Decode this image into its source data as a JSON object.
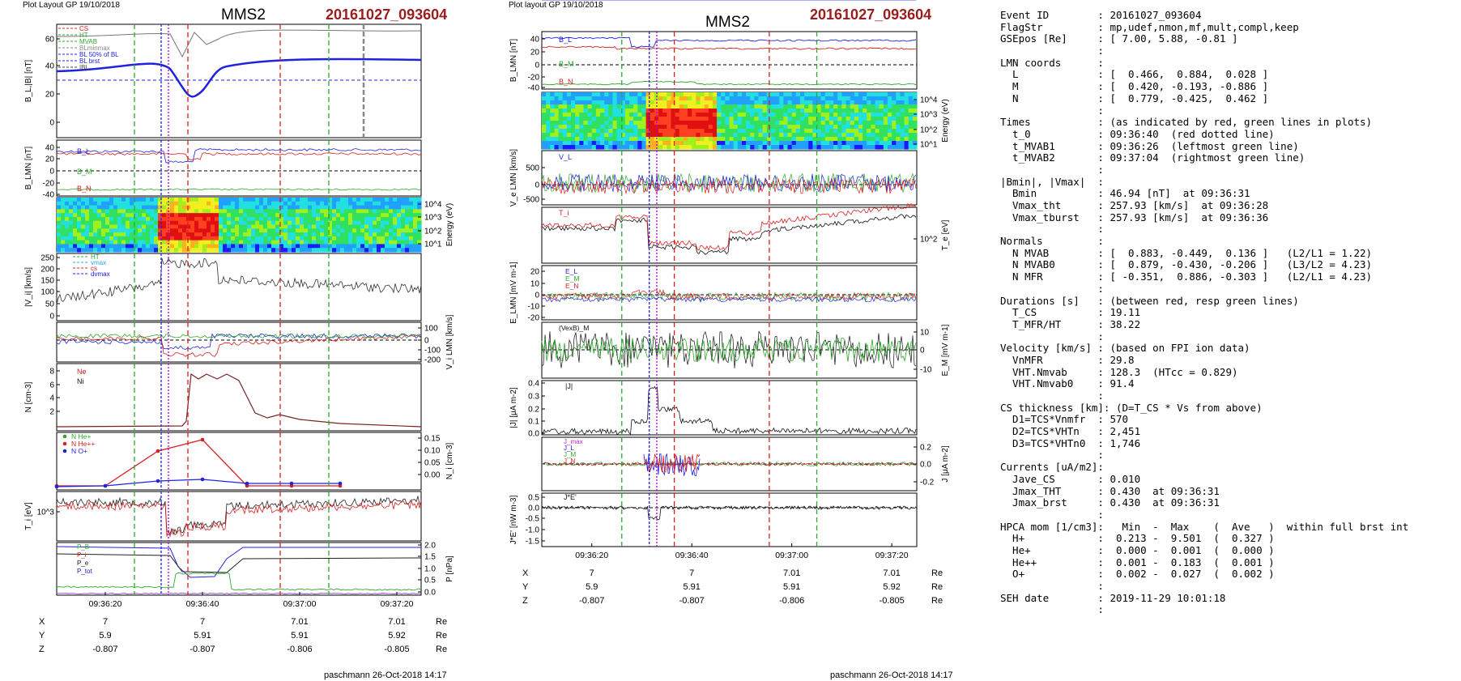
{
  "left_plot": {
    "label": "Plot Layout GP 19/10/2018",
    "spacecraft": "MMS2",
    "event": "20161027_093604",
    "time_ticks": [
      "09:36:20",
      "09:36:40",
      "09:37:00",
      "09:37:20"
    ],
    "coord_rows": [
      {
        "name": "X",
        "vals": [
          "7",
          "7",
          "7.01",
          "7.01"
        ],
        "unit": "Re"
      },
      {
        "name": "Y",
        "vals": [
          "5.9",
          "5.91",
          "5.91",
          "5.92"
        ],
        "unit": "Re"
      },
      {
        "name": "Z",
        "vals": [
          "-0.807",
          "-0.807",
          "-0.806",
          "-0.805"
        ],
        "unit": "Re"
      }
    ],
    "footer": "paschmann 26-Oct-2018 14:17",
    "panels": [
      {
        "id": "bl",
        "ylabel": "B_L,|B| [nT]",
        "yticks": [
          "60",
          "40",
          "20",
          "0"
        ],
        "ylim": [
          -2,
          68
        ],
        "side": "left",
        "legend": [
          "CS",
          "HT",
          "MVAB",
          "BLminmax",
          "BL 50% of BL",
          "BL brst",
          "|B|"
        ],
        "legend_colors": [
          "#d62020",
          "#2da82d",
          "#2da82d",
          "#888888",
          "#2222dd",
          "#2222dd",
          "#444444"
        ]
      },
      {
        "id": "blmn",
        "ylabel": "B_LMN [nT]",
        "yticks": [
          "40",
          "20",
          "0",
          "-20",
          "-40"
        ],
        "ylim": [
          -45,
          48
        ],
        "side": "left",
        "labels": [
          "B_L",
          "B_M",
          "B_N"
        ]
      },
      {
        "id": "spec",
        "ylabel": "Energy (eV)",
        "yticks": [
          "10^4",
          "10^3",
          "10^2",
          "10^1"
        ],
        "side": "right"
      },
      {
        "id": "vi",
        "ylabel": "|V_i| [km/s]",
        "yticks": [
          "250",
          "200",
          "150",
          "100",
          "50",
          "0"
        ],
        "ylim": [
          0,
          260
        ],
        "side": "left",
        "legend": [
          "HT",
          "vmax",
          "cs",
          "dvmax"
        ],
        "legend_colors": [
          "#2da82d",
          "#22aaee",
          "#d62020",
          "#2222dd"
        ]
      },
      {
        "id": "vilmn",
        "ylabel": "V_i LMN [km/s]",
        "yticks": [
          "100",
          "0",
          "-100",
          "-200"
        ],
        "ylim": [
          -240,
          130
        ],
        "side": "right",
        "labels": [
          "V_L",
          "V_M",
          "V_N"
        ]
      },
      {
        "id": "n",
        "ylabel": "N [cm^-3]",
        "yticks": [
          "8",
          "6",
          "4",
          "2"
        ],
        "ylim": [
          0,
          9.2
        ],
        "side": "left",
        "labels": [
          "Ne",
          "Ni"
        ]
      },
      {
        "id": "nhe",
        "ylabel": "N_i [cm^-3]",
        "yticks": [
          "0.15",
          "0.10",
          "0.05",
          "0.00"
        ],
        "ylim": [
          -0.01,
          0.17
        ],
        "side": "right",
        "legend": [
          "N  He+",
          "N  He++",
          "N  O+"
        ],
        "legend_colors": [
          "#2da82d",
          "#d62020",
          "#2222dd"
        ]
      },
      {
        "id": "ti",
        "ylabel": "T_i [eV]",
        "yticks": [
          "10^3"
        ],
        "side": "left",
        "labels": [
          "T_i",
          "T_||"
        ]
      },
      {
        "id": "p",
        "ylabel": "P [nPa]",
        "yticks": [
          "2.0",
          "1.5",
          "1.0",
          "0.5",
          "0.0"
        ],
        "ylim": [
          0,
          2.1
        ],
        "side": "right",
        "labels": [
          "P_B",
          "P_i",
          "P_e",
          "P_tot"
        ]
      }
    ]
  },
  "right_plot": {
    "label": "Plot layout GP 19/10/2018",
    "spacecraft": "MMS2",
    "event": "20161027_093604",
    "time_ticks": [
      "09:36:20",
      "09:36:40",
      "09:37:00",
      "09:37:20"
    ],
    "coord_rows": [
      {
        "name": "X",
        "vals": [
          "7",
          "7",
          "7.01",
          "7.01"
        ],
        "unit": "Re"
      },
      {
        "name": "Y",
        "vals": [
          "5.9",
          "5.91",
          "5.91",
          "5.92"
        ],
        "unit": "Re"
      },
      {
        "name": "Z",
        "vals": [
          "-0.807",
          "-0.807",
          "-0.806",
          "-0.805"
        ],
        "unit": "Re"
      }
    ],
    "footer": "paschmann 26-Oct-2018 14:17",
    "panels": [
      {
        "id": "blmn",
        "ylabel": "B_LMN [nT]",
        "yticks": [
          "40",
          "20",
          "0",
          "-20",
          "-40"
        ],
        "ylim": [
          -45,
          48
        ],
        "side": "left",
        "labels": [
          "B_L",
          "B_M",
          "B_N"
        ]
      },
      {
        "id": "spec",
        "ylabel": "Energy (eV)",
        "yticks": [
          "10^4",
          "10^3",
          "10^2",
          "10^1"
        ],
        "side": "right"
      },
      {
        "id": "ve",
        "ylabel": "V_e LMN [km/s]",
        "yticks": [
          "500",
          "0",
          "-500"
        ],
        "ylim": [
          -700,
          800
        ],
        "side": "left",
        "labels": [
          "V_L"
        ]
      },
      {
        "id": "te",
        "ylabel": "T_e [eV]",
        "yticks": [
          "10^2"
        ],
        "side": "right",
        "labels": [
          "T_i"
        ]
      },
      {
        "id": "e",
        "ylabel": "E_LMN [mV m^-1]",
        "yticks": [
          "20",
          "10",
          "0",
          "-10",
          "-20"
        ],
        "ylim": [
          -28,
          28
        ],
        "side": "left",
        "labels": [
          "E_L",
          "E_M",
          "E_N"
        ]
      },
      {
        "id": "em",
        "ylabel": "E_M [mV m^-1]",
        "yticks": [
          "10",
          "0",
          "-10"
        ],
        "ylim": [
          -14,
          14
        ],
        "side": "right",
        "labels": [
          "(VexB)_M"
        ]
      },
      {
        "id": "j",
        "ylabel": "|J| [μA m^-2]",
        "yticks": [
          "0.4",
          "0.3",
          "0.2",
          "0.1",
          "0.0"
        ],
        "ylim": [
          0,
          0.42
        ],
        "side": "left",
        "labels": [
          "|J|"
        ]
      },
      {
        "id": "jlmn",
        "ylabel": "J [μA m^-2]",
        "yticks": [
          "0.2",
          "0.0",
          "-0.2"
        ],
        "ylim": [
          -0.3,
          0.3
        ],
        "side": "right",
        "labels": [
          "J_max",
          "J_L",
          "J_M",
          "J_N"
        ]
      },
      {
        "id": "je",
        "ylabel": "J*E' [nW m^-3]",
        "yticks": [
          "0.5",
          "0.0",
          "-0.5",
          "-1.0",
          "-1.5"
        ],
        "ylim": [
          -1.6,
          0.6
        ],
        "side": "left",
        "labels": [
          "J*E'"
        ]
      }
    ]
  },
  "summary_lines": [
    "Event ID        : 20161027_093604",
    "FlagStr         : mp,udef,nmon,mf,mult,compl,keep",
    "GSEpos [Re]     : [ 7.00, 5.88, -0.81 ]",
    "                :",
    "LMN coords      :",
    "  L             : [  0.466,  0.884,  0.028 ]",
    "  M             : [  0.420, -0.193, -0.886 ]",
    "  N             : [  0.779, -0.425,  0.462 ]",
    "                :",
    "Times           : (as indicated by red, green lines in plots)",
    "  t_0           : 09:36:40  (red dotted line)",
    "  t_MVAB1       : 09:36:26  (leftmost green line)",
    "  t_MVAB2       : 09:37:04  (rightmost green line)",
    "                :",
    "|Bmin|, |Vmax|  :",
    "  Bmin          : 46.94 [nT]  at 09:36:31",
    "  Vmax_tht      : 257.93 [km/s]  at 09:36:28",
    "  Vmax_tburst   : 257.93 [km/s]  at 09:36:36",
    "                :",
    "Normals         :",
    "  N MVAB        : [  0.883, -0.449,  0.136 ]   (L2/L1 = 1.22)",
    "  N MVAB0       : [  0.879, -0.430, -0.206 ]   (L3/L2 = 4.23)",
    "  N MFR         : [ -0.351,  0.886, -0.303 ]   (L2/L1 = 4.23)",
    "                :",
    "Durations [s]   : (between red, resp green lines)",
    "  T_CS          : 19.11",
    "  T_MFR/HT      : 38.22",
    "                :",
    "Velocity [km/s] : (based on FPI ion data)",
    "  VnMFR         : 29.8",
    "  VHT.Nmvab     : 128.3  (HTcc = 0.829)",
    "  VHT.Nmvab0    : 91.4",
    "                :",
    "CS thickness [km]: (D=T_CS * Vs from above)",
    "  D1=TCS*Vnmfr  : 570",
    "  D2=TCS*VHTn   : 2,451",
    "  D3=TCS*VHTn0  : 1,746",
    "                :",
    "Currents [uA/m2]:",
    "  Jave_CS       : 0.010",
    "  Jmax_THT      : 0.430  at 09:36:31",
    "  Jmax_brst     : 0.430  at 09:36:31",
    "                :",
    "HPCA mom [1/cm3]:   Min  -  Max    (  Ave   )  within full brst int",
    "  H+            :  0.213 -  9.501  (  0.327 )",
    "  He+           :  0.000 -  0.001  (  0.000 )",
    "  He++          :  0.001 -  0.183  (  0.001 )",
    "  O+            :  0.002 -  0.027  (  0.002 )",
    "                :",
    "SEH date        : 2019-11-29 10:01:18",
    "                :"
  ],
  "colors": {
    "event": "#9b1c1c",
    "red": "#d62020",
    "green": "#2da82d",
    "blue": "#2222dd",
    "black": "#111111",
    "gray": "#888888"
  },
  "chart_data": [
    {
      "type": "line",
      "title": "MMS2  20161027_093604",
      "xlabel": "",
      "time_range": [
        "09:36:10",
        "09:37:25"
      ],
      "panels_summary": "B_L,|B|; B_LMN; ion energy spectrogram; |V_i|; V_i LMN; N; N_i HPCA; T_i; P",
      "bl_series": {
        "name": "B_L",
        "x": [
          "09:36:10",
          "09:36:20",
          "09:36:26",
          "09:36:31",
          "09:36:36",
          "09:36:40",
          "09:36:50",
          "09:37:00",
          "09:37:10",
          "09:37:25"
        ],
        "values": [
          40,
          42,
          44,
          20,
          32,
          40,
          43,
          46,
          47,
          47
        ]
      },
      "absb_series": {
        "name": "|B|",
        "x": [
          "09:36:10",
          "09:36:20",
          "09:36:26",
          "09:36:31",
          "09:36:36",
          "09:36:40",
          "09:36:50",
          "09:37:00",
          "09:37:10",
          "09:37:25"
        ],
        "values": [
          60,
          61,
          60,
          55,
          40,
          50,
          62,
          64,
          65,
          65
        ]
      },
      "n_ne": {
        "name": "Ne",
        "x": [
          "09:36:10",
          "09:36:25",
          "09:36:28",
          "09:36:30",
          "09:36:40",
          "09:36:45",
          "09:36:55",
          "09:37:10",
          "09:37:25"
        ],
        "values": [
          0.2,
          0.3,
          0.8,
          7.5,
          7.0,
          5.0,
          1.5,
          0.6,
          0.3
        ]
      },
      "he_pp": {
        "name": "N He++",
        "x": [
          "09:36:10",
          "09:36:20",
          "09:36:30",
          "09:36:38",
          "09:36:48",
          "09:37:00",
          "09:37:10"
        ],
        "values": [
          0.0,
          0.0,
          0.11,
          0.14,
          0.0,
          0.0,
          0.0
        ]
      },
      "o_p": {
        "name": "N O+",
        "x": [
          "09:36:10",
          "09:36:20",
          "09:36:30",
          "09:36:38",
          "09:36:48",
          "09:37:00",
          "09:37:10"
        ],
        "values": [
          0.0,
          0.0,
          0.01,
          0.015,
          0.0,
          0.0,
          0.0
        ]
      },
      "pressure_pb": {
        "name": "P_B",
        "x": [
          "09:36:10",
          "09:36:26",
          "09:36:31",
          "09:36:40",
          "09:36:50",
          "09:37:25"
        ],
        "values": [
          1.7,
          1.6,
          0.3,
          0.8,
          1.85,
          1.9
        ]
      }
    },
    {
      "type": "line",
      "title": "MMS2  20161027_093604",
      "time_range": [
        "09:36:10",
        "09:37:25"
      ],
      "j_abs": {
        "name": "|J|",
        "x": [
          "09:36:10",
          "09:36:28",
          "09:36:31",
          "09:36:35",
          "09:36:45",
          "09:37:00",
          "09:37:25"
        ],
        "values": [
          0.02,
          0.05,
          0.43,
          0.2,
          0.1,
          0.03,
          0.02
        ]
      },
      "je": {
        "name": "J*E'",
        "x": [
          "09:36:10",
          "09:36:30",
          "09:36:31",
          "09:36:33",
          "09:37:25"
        ],
        "values": [
          0.0,
          -0.1,
          -1.2,
          0.1,
          0.0
        ]
      }
    }
  ]
}
